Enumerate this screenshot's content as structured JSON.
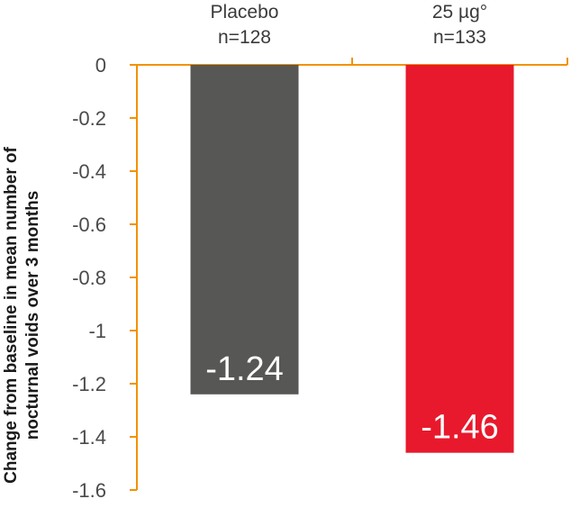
{
  "chart_data": {
    "type": "bar",
    "categories": [
      "Placebo",
      "25 µg°"
    ],
    "category_sublabels": [
      "n=128",
      "n=133"
    ],
    "values": [
      -1.24,
      -1.46
    ],
    "data_labels": [
      "-1.24",
      "-1.46"
    ],
    "colors": [
      "#575755",
      "#e8192c"
    ],
    "title": "",
    "xlabel": "",
    "ylabel": [
      "Change from baseline in mean number of",
      "nocturnal voids over 3 months"
    ],
    "ylim": [
      -1.6,
      0
    ],
    "yticks": [
      0,
      -0.2,
      -0.4,
      -0.6,
      -0.8,
      -1,
      -1.2,
      -1.4,
      -1.6
    ],
    "ytick_labels": [
      "0",
      "-0.2",
      "-0.4",
      "-0.6",
      "-0.8",
      "-1",
      "-1.2",
      "-1.4",
      "-1.6"
    ],
    "axis_color": "#f39200",
    "grid": false,
    "legend": false
  }
}
